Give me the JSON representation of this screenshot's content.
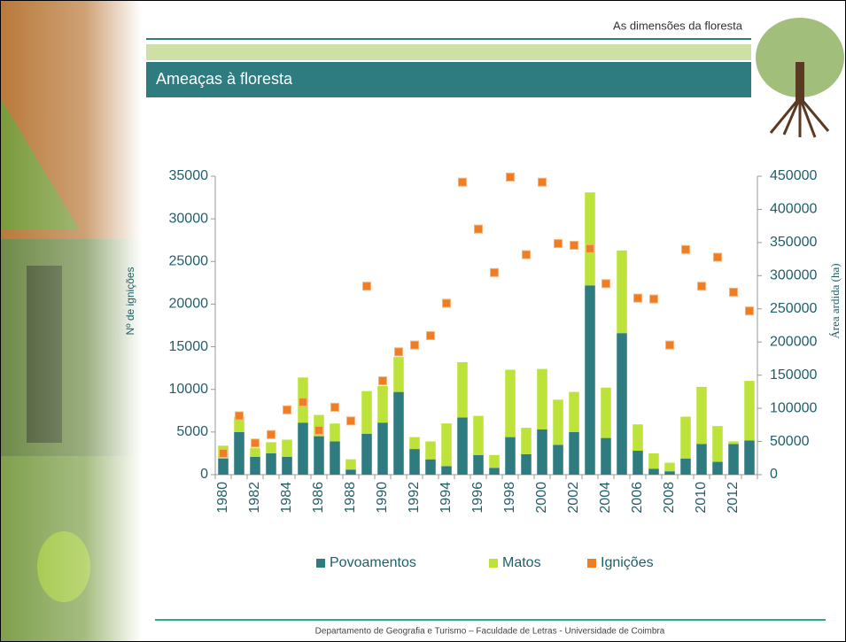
{
  "header": {
    "section": "As dimensões da floresta",
    "title": "Ameaças à floresta"
  },
  "footer": "Departamento de Geografia e Turismo – Faculdade de Letras -  Universidade de Coimbra",
  "chart_data": {
    "type": "bar",
    "stacked": true,
    "ylabel": "Nº de ignições",
    "y2label": "Área ardida (ha)",
    "categories": [
      "1980",
      null,
      "1982",
      null,
      "1984",
      null,
      "1986",
      null,
      "1988",
      null,
      "1990",
      null,
      "1992",
      null,
      "1994",
      null,
      "1996",
      null,
      "1998",
      null,
      "2000",
      null,
      "2002",
      null,
      "2004",
      null,
      "2006",
      null,
      "2008",
      null,
      "2010",
      null,
      "2012",
      null
    ],
    "ylim": [
      0,
      35000
    ],
    "yticks": [
      0,
      5000,
      10000,
      15000,
      20000,
      25000,
      30000,
      35000
    ],
    "y2lim": [
      0,
      450000
    ],
    "y2ticks": [
      0,
      50000,
      100000,
      150000,
      200000,
      250000,
      300000,
      350000,
      400000,
      450000
    ],
    "legend": "bottom",
    "series": [
      {
        "name": "Povoamentos",
        "color": "#2e7b80",
        "axis": "y2",
        "type": "bar",
        "values": [
          24400,
          64300,
          27000,
          32100,
          27000,
          78400,
          57900,
          50100,
          7700,
          61700,
          78400,
          124700,
          38600,
          23100,
          12900,
          86100,
          29600,
          10300,
          56600,
          30900,
          68100,
          45000,
          64300,
          285400,
          55300,
          213400,
          36000,
          9000,
          5100,
          24400,
          46300,
          19300,
          46300,
          51400
        ]
      },
      {
        "name": "Matos",
        "color": "#bde33a",
        "axis": "y2",
        "type": "bar",
        "values": [
          19300,
          23100,
          12900,
          16800,
          25700,
          68100,
          32100,
          27000,
          15400,
          64300,
          55300,
          52700,
          18000,
          27000,
          64300,
          83600,
          59100,
          19300,
          101600,
          39800,
          91300,
          68100,
          60400,
          140200,
          75900,
          124700,
          39800,
          23100,
          12900,
          63000,
          86100,
          54000,
          3900,
          90000
        ]
      },
      {
        "name": "Ignições",
        "color": "#ee7d23",
        "axis": "y",
        "type": "scatter",
        "values": [
          2500,
          6900,
          3700,
          4700,
          7600,
          8500,
          5200,
          7900,
          6300,
          22100,
          11000,
          14400,
          15200,
          16300,
          20100,
          34300,
          28800,
          23700,
          34900,
          25800,
          34300,
          27100,
          26900,
          26500,
          22400,
          null,
          20700,
          20600,
          15200,
          26400,
          22100,
          25500,
          21400,
          19200
        ]
      }
    ]
  }
}
